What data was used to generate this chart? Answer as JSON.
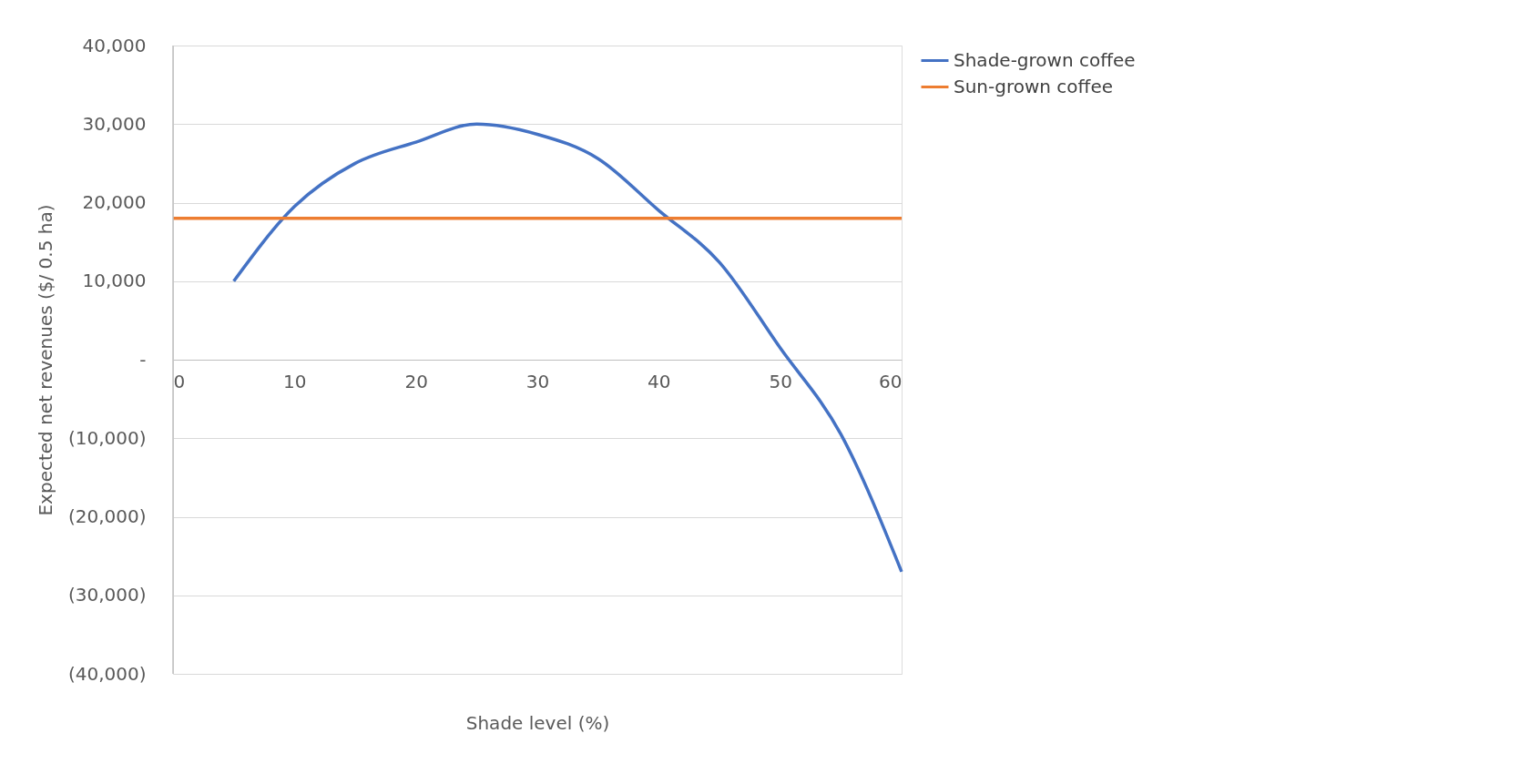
{
  "chart_data": {
    "type": "line",
    "xlabel": "Shade level (%)",
    "ylabel": "Expected net revenues ($/ 0.5 ha)",
    "xlim": [
      0,
      60
    ],
    "xticks": [
      0,
      10,
      20,
      30,
      40,
      50,
      60
    ],
    "ylim": [
      -40000,
      40000
    ],
    "yticks": [
      {
        "value": -40000,
        "label": "(40,000)"
      },
      {
        "value": -30000,
        "label": "(30,000)"
      },
      {
        "value": -20000,
        "label": "(20,000)"
      },
      {
        "value": -10000,
        "label": "(10,000)"
      },
      {
        "value": 0,
        "label": "-"
      },
      {
        "value": 10000,
        "label": "10,000"
      },
      {
        "value": 20000,
        "label": "20,000"
      },
      {
        "value": 30000,
        "label": "30,000"
      },
      {
        "value": 40000,
        "label": "40,000"
      }
    ],
    "grid": "y",
    "legend": "right",
    "marker": "none",
    "line_style": "solid",
    "series": [
      {
        "name": "Shade-grown coffee",
        "color": "#4472c4",
        "x": [
          5,
          10,
          15,
          20,
          25,
          30,
          35,
          40,
          45,
          50,
          55,
          60
        ],
        "values": [
          10000,
          19500,
          25000,
          27700,
          30000,
          28700,
          25600,
          19000,
          12400,
          1500,
          -9500,
          -27000
        ]
      },
      {
        "name": "Sun-grown coffee",
        "color": "#ed7d31",
        "x": [
          0,
          60
        ],
        "values": [
          18000,
          18000
        ]
      }
    ]
  }
}
